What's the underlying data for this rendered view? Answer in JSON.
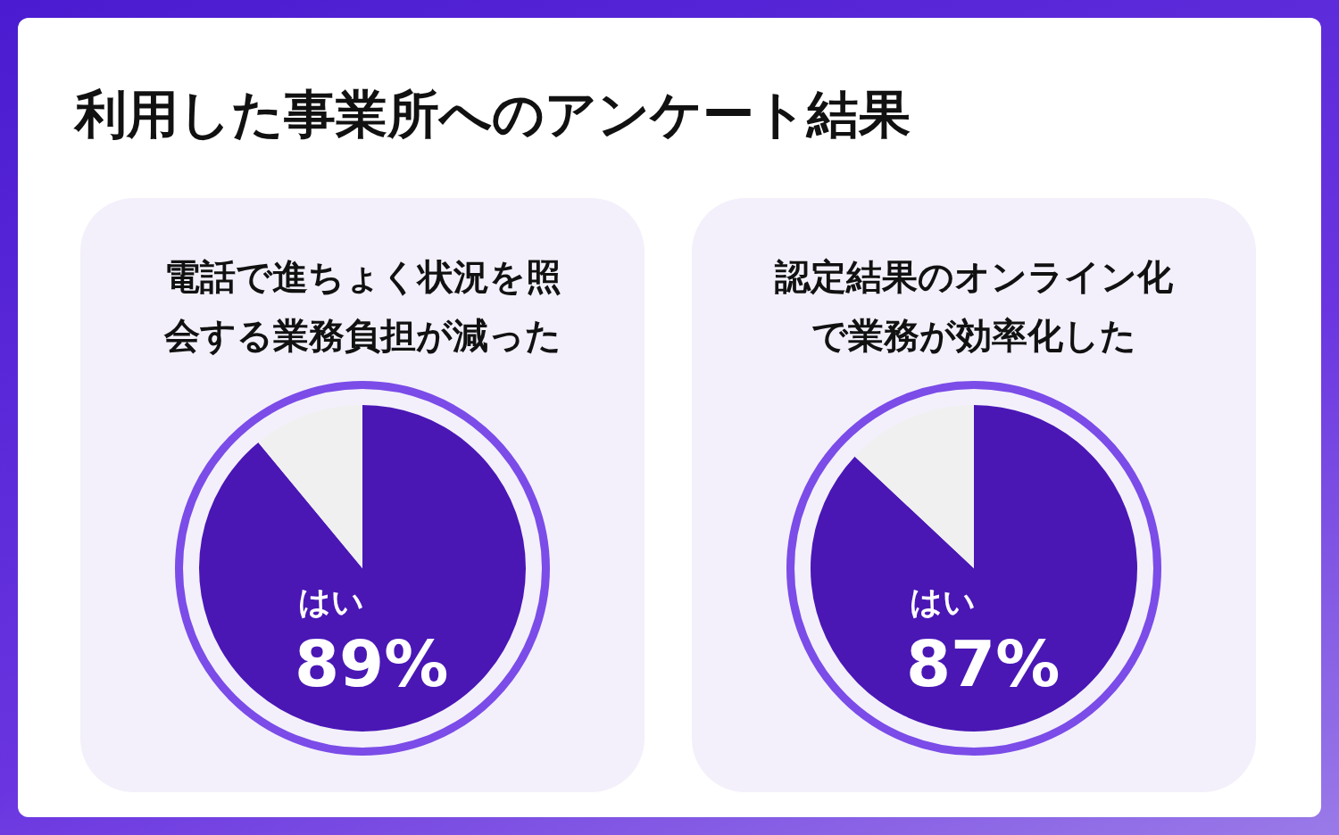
{
  "chart_data": [
    {
      "type": "other",
      "title": "利用した事業所へのアンケート結果"
    },
    {
      "type": "pie",
      "title": "電話で進ちょく状況を照会する業務負担が減った",
      "categories": [
        "はい",
        null
      ],
      "values": [
        89,
        11
      ],
      "colors": [
        "#4a17b5",
        "#f0f0f0"
      ],
      "value_labels": [
        "89%",
        null
      ]
    },
    {
      "type": "pie",
      "title": "認定結果のオンライン化で業務が効率化した",
      "categories": [
        "はい",
        null
      ],
      "values": [
        87,
        13
      ],
      "colors": [
        "#4a17b5",
        "#f0f0f0"
      ],
      "value_labels": [
        "87%",
        null
      ]
    }
  ]
}
